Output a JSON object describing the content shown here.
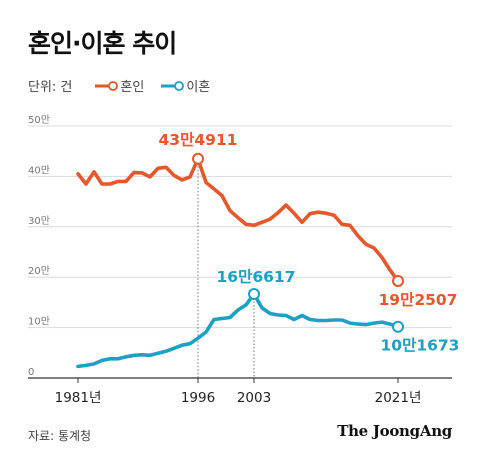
{
  "title": "혼인·이혼 추이",
  "legend": {
    "unit": "단위: 건",
    "items": [
      "혼인",
      "이혼"
    ]
  },
  "source": "자료: 통계청",
  "brand": "The JoongAng",
  "colors": {
    "marriage": "#e8572a",
    "divorce": "#1ba0c6"
  },
  "chart_data": {
    "type": "line",
    "title": "혼인·이혼 추이",
    "y_unit": "만",
    "ylim": [
      0,
      50
    ],
    "xlim": [
      1981,
      2021
    ],
    "yticks": [
      0,
      10,
      20,
      30,
      40,
      50
    ],
    "ytick_labels": [
      "0",
      "10만",
      "20만",
      "30만",
      "40만",
      "50만"
    ],
    "xtick_labels": [
      "1981년",
      "1996",
      "2003",
      "2021년"
    ],
    "xticks": [
      1981,
      1996,
      2003,
      2021
    ],
    "series": [
      {
        "name": "혼인",
        "color": "#e8572a",
        "x": [
          1981,
          1982,
          1983,
          1984,
          1985,
          1986,
          1987,
          1988,
          1989,
          1990,
          1991,
          1992,
          1993,
          1994,
          1995,
          1996,
          1997,
          1998,
          1999,
          2000,
          2001,
          2002,
          2003,
          2004,
          2005,
          2006,
          2007,
          2008,
          2009,
          2010,
          2011,
          2012,
          2013,
          2014,
          2015,
          2016,
          2017,
          2018,
          2019,
          2020,
          2021
        ],
        "y": [
          40.5,
          38.5,
          40.9,
          38.5,
          38.5,
          39.0,
          39.0,
          40.8,
          40.7,
          39.9,
          41.6,
          41.8,
          40.2,
          39.3,
          39.9,
          43.49,
          38.8,
          37.5,
          36.2,
          33.2,
          31.8,
          30.5,
          30.3,
          30.9,
          31.5,
          32.8,
          34.3,
          32.7,
          30.9,
          32.6,
          32.9,
          32.7,
          32.3,
          30.5,
          30.3,
          28.2,
          26.5,
          25.8,
          23.9,
          21.4,
          19.25
        ],
        "annotations": [
          {
            "x": 1996,
            "label": "43만4911"
          },
          {
            "x": 2021,
            "label": "19만2507"
          }
        ]
      },
      {
        "name": "이혼",
        "color": "#1ba0c6",
        "x": [
          1981,
          1982,
          1983,
          1984,
          1985,
          1986,
          1987,
          1988,
          1989,
          1990,
          1991,
          1992,
          1993,
          1994,
          1995,
          1996,
          1997,
          1998,
          1999,
          2000,
          2001,
          2002,
          2003,
          2004,
          2005,
          2006,
          2007,
          2008,
          2009,
          2010,
          2011,
          2012,
          2013,
          2014,
          2015,
          2016,
          2017,
          2018,
          2019,
          2020,
          2021
        ],
        "y": [
          2.3,
          2.5,
          2.8,
          3.5,
          3.8,
          3.8,
          4.2,
          4.5,
          4.6,
          4.5,
          4.9,
          5.3,
          5.9,
          6.5,
          6.8,
          7.9,
          9.1,
          11.6,
          11.8,
          12.0,
          13.5,
          14.5,
          16.66,
          13.9,
          12.8,
          12.5,
          12.4,
          11.6,
          12.4,
          11.6,
          11.4,
          11.4,
          11.5,
          11.5,
          10.9,
          10.7,
          10.6,
          10.9,
          11.1,
          10.7,
          10.17
        ],
        "annotations": [
          {
            "x": 2003,
            "label": "16만6617"
          },
          {
            "x": 2021,
            "label": "10만1673"
          }
        ]
      }
    ],
    "grid": true,
    "legend_position": "top-left"
  }
}
